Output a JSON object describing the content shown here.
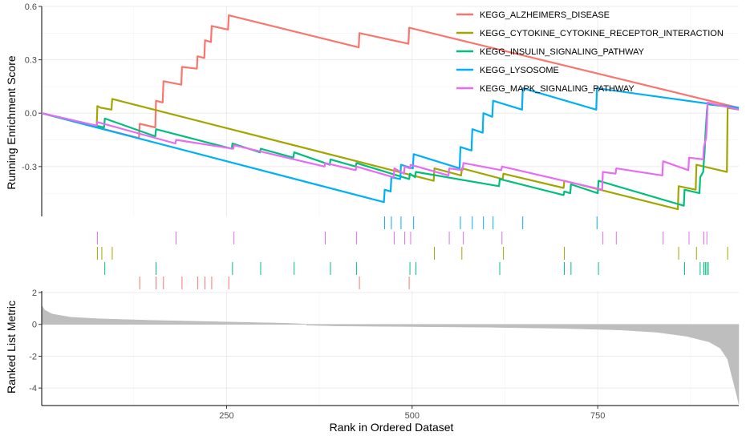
{
  "chart_data": {
    "type": "line",
    "title": "",
    "xlabel": "Rank in Ordered Dataset",
    "xlim": [
      1,
      940
    ],
    "x_ticks": [
      250,
      500,
      750
    ],
    "top_panel": {
      "ylabel": "Running Enrichment Score",
      "ylim": [
        -0.58,
        0.6
      ],
      "y_ticks": [
        0.6,
        0.3,
        0.0,
        -0.3
      ],
      "y_tick_labels": [
        "0.6",
        "0.3",
        "0.0",
        "-0.3"
      ],
      "grid": true,
      "legend_position": "top-right",
      "series": [
        {
          "name": "KEGG_ALZHEIMERS_DISEASE",
          "color": "#F8766D",
          "hits": [
            133,
            155,
            165,
            190,
            211,
            221,
            230,
            253,
            429,
            496
          ],
          "points": [
            [
              1,
              0
            ],
            [
              132,
              -0.14
            ],
            [
              133,
              -0.06
            ],
            [
              154,
              -0.08
            ],
            [
              155,
              0.07
            ],
            [
              164,
              0.06
            ],
            [
              165,
              0.18
            ],
            [
              189,
              0.16
            ],
            [
              190,
              0.26
            ],
            [
              210,
              0.25
            ],
            [
              211,
              0.32
            ],
            [
              220,
              0.31
            ],
            [
              221,
              0.41
            ],
            [
              229,
              0.4
            ],
            [
              230,
              0.49
            ],
            [
              252,
              0.47
            ],
            [
              253,
              0.55
            ],
            [
              428,
              0.37
            ],
            [
              429,
              0.45
            ],
            [
              495,
              0.39
            ],
            [
              496,
              0.48
            ],
            [
              940,
              0.03
            ]
          ]
        },
        {
          "name": "KEGG_CYTOKINE_CYTOKINE_RECEPTOR_INTERACTION",
          "color": "#A3A500",
          "hits": [
            76,
            82,
            96,
            530,
            567,
            623,
            705,
            859,
            883,
            925
          ],
          "points": [
            [
              1,
              0
            ],
            [
              75,
              -0.08
            ],
            [
              76,
              0.04
            ],
            [
              81,
              0.03
            ],
            [
              82,
              0.03
            ],
            [
              95,
              0.02
            ],
            [
              96,
              0.08
            ],
            [
              529,
              -0.38
            ],
            [
              530,
              -0.31
            ],
            [
              566,
              -0.35
            ],
            [
              567,
              -0.31
            ],
            [
              622,
              -0.37
            ],
            [
              623,
              -0.34
            ],
            [
              704,
              -0.42
            ],
            [
              705,
              -0.38
            ],
            [
              858,
              -0.54
            ],
            [
              859,
              -0.41
            ],
            [
              882,
              -0.43
            ],
            [
              883,
              -0.29
            ],
            [
              924,
              -0.33
            ],
            [
              925,
              0.03
            ],
            [
              940,
              0.02
            ]
          ]
        },
        {
          "name KEGG_INSULIN_SIGNALING_PATHWAY": "",
          "name": "KEGG_INSULIN_SIGNALING_PATHWAY",
          "color": "#00BF7D",
          "hits": [
            86,
            155,
            258,
            296,
            341,
            390,
            425,
            497,
            505,
            618,
            705,
            714,
            751,
            867,
            888,
            893,
            895,
            897,
            899
          ],
          "points": [
            [
              1,
              0
            ],
            [
              85,
              -0.08
            ],
            [
              86,
              -0.03
            ],
            [
              154,
              -0.13
            ],
            [
              155,
              -0.09
            ],
            [
              257,
              -0.2
            ],
            [
              258,
              -0.17
            ],
            [
              295,
              -0.22
            ],
            [
              296,
              -0.2
            ],
            [
              340,
              -0.25
            ],
            [
              341,
              -0.22
            ],
            [
              389,
              -0.29
            ],
            [
              390,
              -0.26
            ],
            [
              424,
              -0.3
            ],
            [
              425,
              -0.28
            ],
            [
              496,
              -0.37
            ],
            [
              497,
              -0.34
            ],
            [
              504,
              -0.36
            ],
            [
              505,
              -0.33
            ],
            [
              617,
              -0.41
            ],
            [
              618,
              -0.37
            ],
            [
              704,
              -0.46
            ],
            [
              705,
              -0.44
            ],
            [
              713,
              -0.45
            ],
            [
              714,
              -0.4
            ],
            [
              750,
              -0.45
            ],
            [
              751,
              -0.38
            ],
            [
              866,
              -0.52
            ],
            [
              867,
              -0.43
            ],
            [
              887,
              -0.45
            ],
            [
              888,
              -0.36
            ],
            [
              892,
              -0.33
            ],
            [
              893,
              -0.27
            ],
            [
              894,
              -0.22
            ],
            [
              895,
              -0.12
            ],
            [
              896,
              -0.06
            ],
            [
              897,
              0.01
            ],
            [
              898,
              0.05
            ],
            [
              940,
              0.03
            ]
          ]
        },
        {
          "name": "KEGG_LYSOSOME",
          "color": "#00B0F6",
          "hits": [
            463,
            472,
            485,
            502,
            565,
            581,
            596,
            609,
            649,
            749
          ],
          "points": [
            [
              1,
              0
            ],
            [
              462,
              -0.5
            ],
            [
              463,
              -0.43
            ],
            [
              471,
              -0.44
            ],
            [
              472,
              -0.36
            ],
            [
              484,
              -0.37
            ],
            [
              485,
              -0.29
            ],
            [
              501,
              -0.31
            ],
            [
              502,
              -0.23
            ],
            [
              564,
              -0.31
            ],
            [
              565,
              -0.19
            ],
            [
              580,
              -0.21
            ],
            [
              581,
              -0.09
            ],
            [
              595,
              -0.11
            ],
            [
              596,
              0.0
            ],
            [
              608,
              -0.02
            ],
            [
              609,
              0.07
            ],
            [
              648,
              0.02
            ],
            [
              649,
              0.14
            ],
            [
              748,
              0.02
            ],
            [
              749,
              0.14
            ],
            [
              940,
              0.03
            ]
          ]
        },
        {
          "name": "KEGG_MAPK_SIGNALING_PATHWAY",
          "color": "#E76BF3",
          "hits": [
            76,
            182,
            260,
            383,
            425,
            476,
            490,
            498,
            550,
            569,
            621,
            757,
            775,
            838,
            873,
            893,
            897
          ],
          "points": [
            [
              1,
              0
            ],
            [
              75,
              -0.07
            ],
            [
              76,
              -0.05
            ],
            [
              181,
              -0.17
            ],
            [
              182,
              -0.15
            ],
            [
              259,
              -0.2
            ],
            [
              260,
              -0.18
            ],
            [
              382,
              -0.3
            ],
            [
              383,
              -0.28
            ],
            [
              424,
              -0.32
            ],
            [
              425,
              -0.3
            ],
            [
              475,
              -0.36
            ],
            [
              476,
              -0.31
            ],
            [
              489,
              -0.34
            ],
            [
              490,
              -0.3
            ],
            [
              497,
              -0.31
            ],
            [
              498,
              -0.29
            ],
            [
              549,
              -0.35
            ],
            [
              550,
              -0.31
            ],
            [
              568,
              -0.32
            ],
            [
              569,
              -0.28
            ],
            [
              620,
              -0.32
            ],
            [
              621,
              -0.3
            ],
            [
              756,
              -0.43
            ],
            [
              757,
              -0.33
            ],
            [
              774,
              -0.34
            ],
            [
              775,
              -0.31
            ],
            [
              837,
              -0.35
            ],
            [
              838,
              -0.27
            ],
            [
              872,
              -0.32
            ],
            [
              873,
              -0.25
            ],
            [
              892,
              -0.26
            ],
            [
              893,
              -0.19
            ],
            [
              896,
              -0.14
            ],
            [
              897,
              -0.07
            ],
            [
              898,
              0.06
            ],
            [
              940,
              0.02
            ]
          ]
        }
      ]
    },
    "bottom_panel": {
      "ylabel": "Ranked List Metric",
      "ylim": [
        -5.1,
        2.1
      ],
      "y_ticks": [
        2,
        0,
        -2,
        -4
      ],
      "y_tick_labels": [
        "2",
        "0",
        "-2",
        "-4"
      ],
      "bar_color": "#BEBEBE",
      "metric_profile": [
        [
          1,
          1.2
        ],
        [
          5,
          0.9
        ],
        [
          15,
          0.65
        ],
        [
          40,
          0.45
        ],
        [
          80,
          0.35
        ],
        [
          150,
          0.25
        ],
        [
          250,
          0.15
        ],
        [
          330,
          0.07
        ],
        [
          355,
          0.02
        ],
        [
          358,
          -0.05
        ],
        [
          400,
          -0.1
        ],
        [
          500,
          -0.14
        ],
        [
          600,
          -0.18
        ],
        [
          700,
          -0.25
        ],
        [
          780,
          -0.35
        ],
        [
          830,
          -0.5
        ],
        [
          870,
          -0.75
        ],
        [
          900,
          -1.1
        ],
        [
          915,
          -1.5
        ],
        [
          925,
          -2.2
        ],
        [
          932,
          -3.5
        ],
        [
          937,
          -4.4
        ],
        [
          940,
          -5.0
        ]
      ]
    }
  }
}
